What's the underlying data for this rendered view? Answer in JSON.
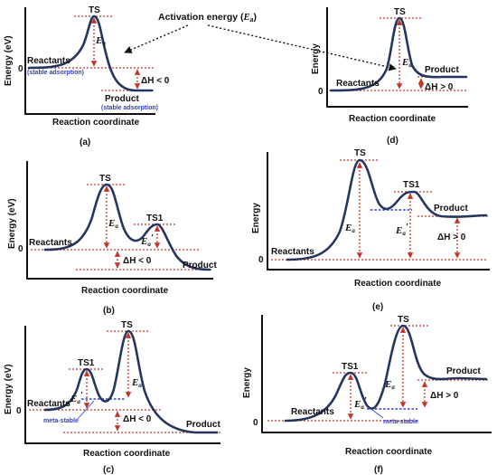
{
  "header": {
    "activation_prefix": "Activation energy (",
    "activation_symbol": "E",
    "activation_sub": "a",
    "activation_suffix": ")"
  },
  "panels": {
    "a": {
      "caption": "(a)",
      "y_axis": "Energy (eV)",
      "x_axis": "Reaction coordinate",
      "zero": "0",
      "ts": "TS",
      "ea": "E",
      "ea_sub": "a",
      "reactants": "Reactants",
      "reactants_note": "(stable adsorption)",
      "product": "Product",
      "product_note": "(stable adsorption)",
      "dh": "ΔH < 0"
    },
    "b": {
      "caption": "(b)",
      "y_axis": "Energy (eV)",
      "x_axis": "Reaction coordinate",
      "zero": "0",
      "ts": "TS",
      "ts1": "TS1",
      "ea": "E",
      "ea_sub": "a",
      "ea2": "E",
      "ea2_sub": "a",
      "ea2_prime": "′",
      "reactants": "Reactants",
      "product": "Product",
      "dh": "ΔH < 0"
    },
    "c": {
      "caption": "(c)",
      "y_axis": "Energy (eV)",
      "x_axis": "Reaction coordinate",
      "zero": "0",
      "ts": "TS",
      "ts1": "TS1",
      "ea": "E",
      "ea_sub": "a",
      "ea2": "E",
      "ea2_sub": "a",
      "ea2_prime": "′",
      "reactants": "Reactants",
      "product": "Product",
      "meta": "meta-stable",
      "dh": "ΔH < 0"
    },
    "d": {
      "caption": "(d)",
      "y_axis": "Energy",
      "x_axis": "Reaction coordinate",
      "zero": "0",
      "ts": "TS",
      "ea": "E",
      "ea_sub": "a",
      "reactants": "Reactants",
      "product": "Product",
      "dh": "ΔH > 0"
    },
    "e": {
      "caption": "(e)",
      "y_axis": "Energy",
      "x_axis": "Reaction coordinate",
      "zero": "0",
      "ts": "TS",
      "ts1": "TS1",
      "ea": "E",
      "ea_sub": "a",
      "ea2": "E",
      "ea2_sub": "a",
      "ea2_prime": "′",
      "reactants": "Reactants",
      "product": "Product",
      "dh": "ΔH > 0"
    },
    "f": {
      "caption": "(f)",
      "y_axis": "Energy",
      "x_axis": "Reaction coordinate",
      "zero": "0",
      "ts": "TS",
      "ts1": "TS1",
      "ea": "E",
      "ea_sub": "a",
      "ea2": "E",
      "ea2_sub": "a",
      "ea2_prime": "′",
      "reactants": "Reactants",
      "product": "Product",
      "meta": "meta-stable",
      "dh": "ΔH > 0"
    }
  },
  "colors": {
    "curve": "#26355f",
    "guide_red": "#c0392b",
    "guide_blue": "#2a3fd6",
    "note_blue": "#2a3fd6"
  }
}
